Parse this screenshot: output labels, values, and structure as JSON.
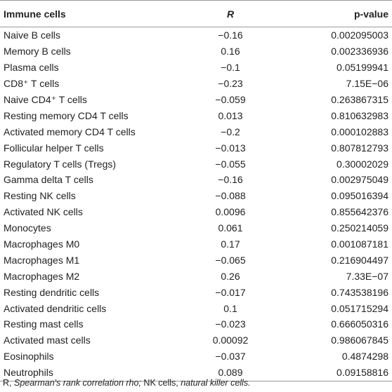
{
  "table": {
    "header": [
      "Immune cells",
      "R",
      "p-value"
    ],
    "rows": [
      [
        "Naive B cells",
        "−0.16",
        "0.002095003"
      ],
      [
        "Memory B cells",
        "0.16",
        "0.002336936"
      ],
      [
        "Plasma cells",
        "−0.1",
        "0.05199941"
      ],
      [
        "CD8⁺ T cells",
        "−0.23",
        "7.15E−06"
      ],
      [
        "Naive CD4⁺ T cells",
        "−0.059",
        "0.263867315"
      ],
      [
        "Resting memory CD4 T cells",
        "0.013",
        "0.810632983"
      ],
      [
        "Activated memory CD4 T cells",
        "−0.2",
        "0.000102883"
      ],
      [
        "Follicular helper T cells",
        "−0.013",
        "0.807812793"
      ],
      [
        "Regulatory T cells (Tregs)",
        "−0.055",
        "0.30002029"
      ],
      [
        "Gamma delta T cells",
        "−0.16",
        "0.002975049"
      ],
      [
        "Resting NK cells",
        "−0.088",
        "0.095016394"
      ],
      [
        "Activated NK cells",
        "0.0096",
        "0.855642376"
      ],
      [
        "Monocytes",
        "0.061",
        "0.250214059"
      ],
      [
        "Macrophages M0",
        "0.17",
        "0.001087181"
      ],
      [
        "Macrophages M1",
        "−0.065",
        "0.216904497"
      ],
      [
        "Macrophages M2",
        "0.26",
        "7.33E−07"
      ],
      [
        "Resting dendritic cells",
        "−0.017",
        "0.743538196"
      ],
      [
        "Activated dendritic cells",
        "0.1",
        "0.051715294"
      ],
      [
        "Resting mast cells",
        "−0.023",
        "0.666050316"
      ],
      [
        "Activated mast cells",
        "0.00092",
        "0.986067845"
      ],
      [
        "Eosinophils",
        "−0.037",
        "0.4874298"
      ],
      [
        "Neutrophils",
        "0.089",
        "0.09158816"
      ]
    ],
    "footnote": [
      "R, ",
      "Spearman's rank correlation rho;",
      " NK cells, ",
      "natural killer cells."
    ]
  }
}
